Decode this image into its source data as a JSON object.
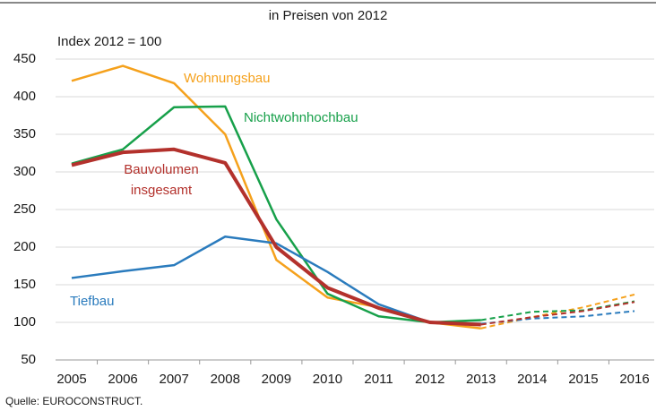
{
  "chart_data": {
    "type": "line",
    "title": "in Preisen von 2012",
    "y_label": "Index 2012 = 100",
    "source": "Quelle: EUROCONSTRUCT.",
    "categories": [
      "2005",
      "2006",
      "2007",
      "2008",
      "2009",
      "2010",
      "2011",
      "2012",
      "2013",
      "2014",
      "2015",
      "2016"
    ],
    "dashed_from": "2013",
    "series": [
      {
        "name": "Wohnungsbau",
        "color": "#f5a11c",
        "values": [
          421,
          441,
          418,
          350,
          183,
          133,
          120,
          100,
          92,
          107,
          120,
          137
        ]
      },
      {
        "name": "Nichtwohnhochbau",
        "color": "#17a04a",
        "values": [
          311,
          330,
          386,
          387,
          237,
          138,
          108,
          100,
          103,
          114,
          116,
          128
        ]
      },
      {
        "name": "Tiefbau",
        "color": "#2a7bbd",
        "values": [
          159,
          168,
          176,
          214,
          205,
          167,
          124,
          100,
          98,
          105,
          108,
          115
        ]
      },
      {
        "name": "Bauvolumen insgesamt",
        "color": "#b3312c",
        "values": [
          309,
          326,
          330,
          312,
          200,
          146,
          119,
          100,
          97,
          107,
          115,
          127
        ]
      }
    ],
    "ylim": [
      50,
      450
    ],
    "yticks": [
      50,
      100,
      150,
      200,
      250,
      300,
      350,
      400,
      450
    ],
    "grid": true
  }
}
